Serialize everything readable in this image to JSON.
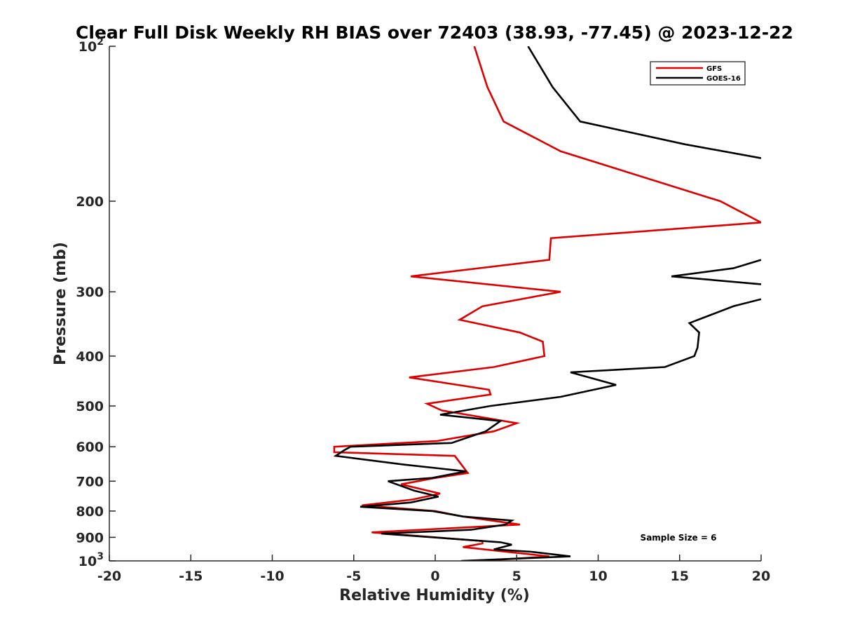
{
  "chart_data": {
    "type": "line",
    "title": "Clear Full Disk Weekly RH BIAS over 72403 (38.93, -77.45) @ 2023-12-22",
    "xlabel": "Relative Humidity (%)",
    "ylabel": "Pressure (mb)",
    "xlim": [
      -20,
      20
    ],
    "ylim": [
      100,
      1000
    ],
    "yscale": "log",
    "y_reversed": true,
    "x_ticks": [
      -20,
      -15,
      -10,
      -5,
      0,
      5,
      10,
      15,
      20
    ],
    "x_tick_labels": [
      "-20",
      "-15",
      "-10",
      "-5",
      "0",
      "5",
      "10",
      "15",
      "20"
    ],
    "y_ticks": [
      100,
      200,
      300,
      400,
      500,
      600,
      700,
      800,
      900,
      1000
    ],
    "y_tick_labels": [
      {
        "base": "10",
        "exp": "2"
      },
      {
        "base": "200",
        "exp": ""
      },
      {
        "base": "300",
        "exp": ""
      },
      {
        "base": "400",
        "exp": ""
      },
      {
        "base": "500",
        "exp": ""
      },
      {
        "base": "600",
        "exp": ""
      },
      {
        "base": "700",
        "exp": ""
      },
      {
        "base": "800",
        "exp": ""
      },
      {
        "base": "900",
        "exp": ""
      },
      {
        "base": "10",
        "exp": "3"
      }
    ],
    "grid": false,
    "legend_position": "top-right",
    "annotation": "Sample Size = 6",
    "series": [
      {
        "name": "GFS",
        "color": "#dd0000",
        "x": [
          2.4,
          3.2,
          4.2,
          7.7,
          17.5,
          20,
          7.1,
          7.0,
          -1.5,
          7.7,
          2.9,
          1.5,
          5.2,
          6.6,
          6.7,
          3.6,
          -1.6,
          3.3,
          3.4,
          -0.5,
          0.4,
          5.0,
          3.6,
          0.1,
          -6.2,
          -6.2,
          1.2,
          2.0,
          0.0,
          -2.1,
          0.3,
          -1.4,
          -4.5,
          0.0,
          1.7,
          5.2,
          -3.9,
          2.9,
          2.9,
          1.7,
          7.0,
          2.8
        ],
        "y": [
          100,
          120,
          140,
          160,
          200,
          220,
          236,
          260,
          280,
          300,
          320,
          340,
          360,
          375,
          400,
          420,
          440,
          465,
          475,
          495,
          510,
          540,
          560,
          585,
          600,
          615,
          625,
          675,
          690,
          710,
          740,
          760,
          780,
          800,
          820,
          850,
          880,
          915,
          925,
          940,
          980,
          1000
        ]
      },
      {
        "name": "GOES-16",
        "color": "#000000",
        "x": [
          5.7,
          7.2,
          8.9,
          15.3,
          20,
          null,
          20,
          18.3,
          14.5,
          20,
          null,
          20,
          18.3,
          15.6,
          16.2,
          16.1,
          15.9,
          14.1,
          8.3,
          11.1,
          7.7,
          3.4,
          0.3,
          4.0,
          3.1,
          1.0,
          -5.2,
          -5.6,
          -6.1,
          -1.9,
          1.9,
          -0.2,
          -2.9,
          -1.3,
          0.2,
          -1.5,
          -4.6,
          -0.2,
          1.7,
          4.7,
          4.3,
          2.2,
          -3.3,
          4.0,
          4.7,
          3.6,
          5.9,
          8.3,
          1.6
        ],
        "y": [
          100,
          120,
          140,
          155,
          165,
          null,
          260,
          270,
          280,
          290,
          null,
          310,
          320,
          345,
          360,
          385,
          400,
          420,
          430,
          455,
          480,
          500,
          520,
          535,
          560,
          590,
          600,
          610,
          625,
          650,
          670,
          690,
          700,
          730,
          750,
          770,
          785,
          800,
          820,
          835,
          850,
          870,
          885,
          920,
          930,
          950,
          960,
          980,
          1000
        ]
      }
    ]
  }
}
